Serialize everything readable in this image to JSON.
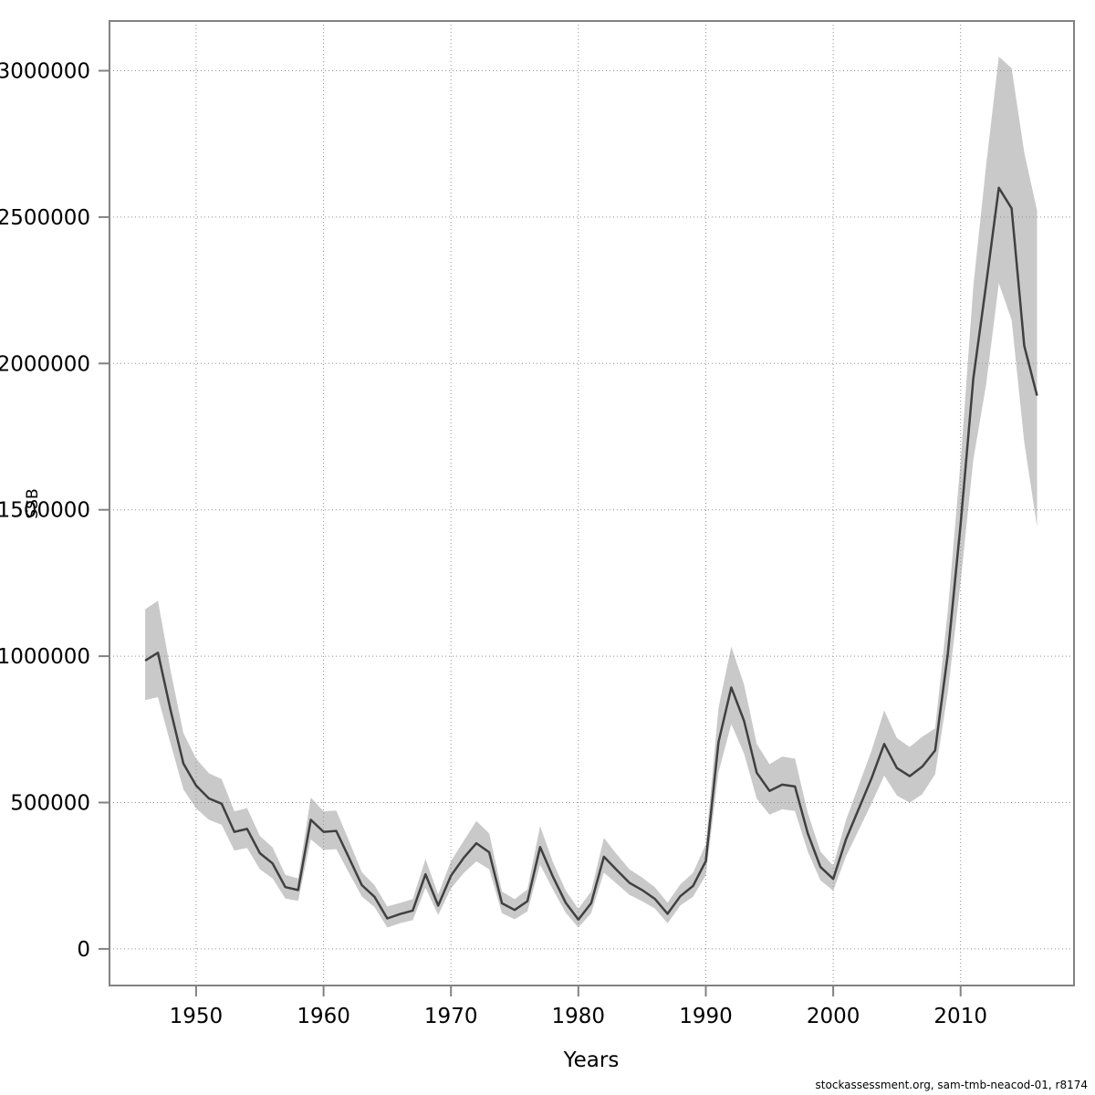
{
  "chart_data": {
    "type": "line",
    "title": "",
    "xlabel": "Years",
    "ylabel": "SSB",
    "caption": "stockassessment.org, sam-tmb-neacod-01, r8174",
    "legend": "none",
    "grid": "dotted",
    "xlim": [
      1943.2,
      2018.9
    ],
    "ylim": [
      -125000,
      3170000
    ],
    "x_ticks": [
      1950,
      1960,
      1970,
      1980,
      1990,
      2000,
      2010
    ],
    "y_ticks": [
      0,
      500000,
      1000000,
      1500000,
      2000000,
      2500000,
      3000000
    ],
    "x": [
      1946,
      1947,
      1948,
      1949,
      1950,
      1951,
      1952,
      1953,
      1954,
      1955,
      1956,
      1957,
      1958,
      1959,
      1960,
      1961,
      1962,
      1963,
      1964,
      1965,
      1966,
      1967,
      1968,
      1969,
      1970,
      1971,
      1972,
      1973,
      1974,
      1975,
      1976,
      1977,
      1978,
      1979,
      1980,
      1981,
      1982,
      1983,
      1984,
      1985,
      1986,
      1987,
      1988,
      1989,
      1990,
      1991,
      1992,
      1993,
      1994,
      1995,
      1996,
      1997,
      1998,
      1999,
      2000,
      2001,
      2002,
      2003,
      2004,
      2005,
      2006,
      2007,
      2008,
      2009,
      2010,
      2011,
      2012,
      2013,
      2014,
      2015,
      2016
    ],
    "series": [
      {
        "name": "SSB estimate",
        "values": [
          985000,
          1012000,
          815000,
          633000,
          558000,
          514000,
          496000,
          400000,
          410000,
          327000,
          292000,
          211000,
          201000,
          441000,
          400000,
          403000,
          311000,
          218000,
          178000,
          104000,
          119000,
          131000,
          255000,
          148000,
          250000,
          311000,
          361000,
          330000,
          156000,
          133000,
          163000,
          348000,
          247000,
          158000,
          100000,
          156000,
          315000,
          270000,
          226000,
          201000,
          171000,
          120000,
          180000,
          215000,
          300000,
          706000,
          893000,
          779000,
          602000,
          540000,
          561000,
          555000,
          395000,
          280000,
          239000,
          374000,
          478000,
          582000,
          700000,
          618000,
          590000,
          623000,
          678000,
          1010000,
          1450000,
          1950000,
          2270000,
          2600000,
          2530000,
          2060000,
          1890000
        ]
      },
      {
        "name": "confidence band lower",
        "values": [
          850000,
          860000,
          700000,
          545000,
          480000,
          441000,
          424000,
          336000,
          345000,
          272000,
          241000,
          172000,
          164000,
          374000,
          338000,
          341000,
          259000,
          179000,
          143000,
          73000,
          88000,
          98000,
          209000,
          116000,
          206000,
          259000,
          299000,
          272000,
          122000,
          101000,
          128000,
          288000,
          203000,
          124000,
          73000,
          122000,
          261000,
          223000,
          185000,
          163000,
          138000,
          88000,
          148000,
          178000,
          252000,
          603000,
          768000,
          667000,
          513000,
          459000,
          477000,
          471000,
          333000,
          234000,
          199000,
          316000,
          406000,
          496000,
          592000,
          524000,
          499000,
          529000,
          597000,
          878000,
          1253000,
          1672000,
          1928000,
          2274000,
          2149000,
          1730000,
          1442000
        ]
      },
      {
        "name": "confidence band upper",
        "values": [
          1160000,
          1190000,
          950000,
          737000,
          650000,
          600000,
          580000,
          470000,
          481000,
          386000,
          347000,
          253000,
          241000,
          517000,
          470000,
          473000,
          369000,
          262000,
          218000,
          145000,
          157000,
          170000,
          307000,
          186000,
          300000,
          369000,
          437000,
          395000,
          196000,
          170000,
          203000,
          420000,
          297000,
          200000,
          137000,
          196000,
          379000,
          324000,
          272000,
          244000,
          211000,
          158000,
          220000,
          260000,
          358000,
          823000,
          1033000,
          903000,
          700000,
          631000,
          657000,
          650000,
          465000,
          333000,
          284000,
          440000,
          558000,
          676000,
          815000,
          720000,
          690000,
          725000,
          753000,
          1158000,
          1664000,
          2266000,
          2677000,
          3048000,
          3009000,
          2720000,
          2523000
        ]
      }
    ],
    "colors": {
      "band": "#c9c9c9",
      "line": "#404040",
      "grid": "#909090",
      "frame": "#828282",
      "text": "#000000",
      "background": "#ffffff"
    }
  }
}
